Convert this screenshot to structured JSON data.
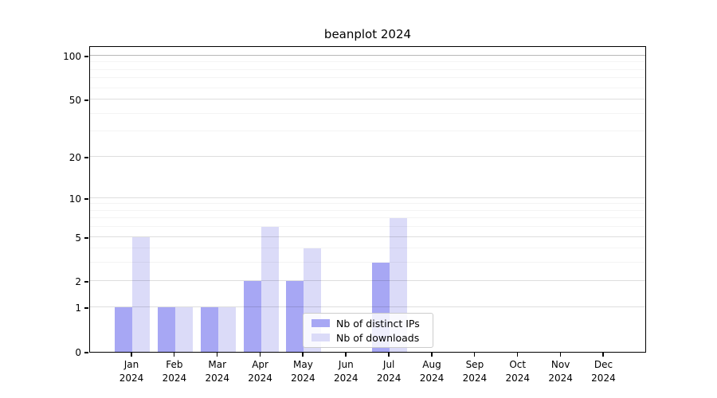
{
  "chart_data": {
    "type": "bar",
    "title": "beanplot 2024",
    "categories": [
      "Jan",
      "Feb",
      "Mar",
      "Apr",
      "May",
      "Jun",
      "Jul",
      "Aug",
      "Sep",
      "Oct",
      "Nov",
      "Dec"
    ],
    "category_sublabel": "2024",
    "series": [
      {
        "name": "Nb of distinct IPs",
        "color": "#a7a7f4",
        "values": [
          1,
          1,
          1,
          2,
          2,
          0,
          3,
          0,
          0,
          0,
          0,
          0
        ]
      },
      {
        "name": "Nb of downloads",
        "color": "#dbdbf8",
        "values": [
          5,
          1,
          1,
          6,
          4,
          0,
          7,
          0,
          0,
          0,
          0,
          0
        ]
      }
    ],
    "yscale": "log1p",
    "ylim": [
      0,
      117
    ],
    "y_major_ticks": [
      0,
      1,
      2,
      5,
      10,
      20,
      50,
      100
    ],
    "y_minor_gridlines": [
      3,
      4,
      6,
      7,
      8,
      9,
      30,
      40,
      60,
      70,
      80,
      90
    ],
    "grid": true,
    "legend_position": "lower center",
    "colors": {
      "background": "#ffffff",
      "axis": "#000000",
      "major_grid": "#dddddd",
      "minor_grid": "#f4f4f4"
    }
  }
}
